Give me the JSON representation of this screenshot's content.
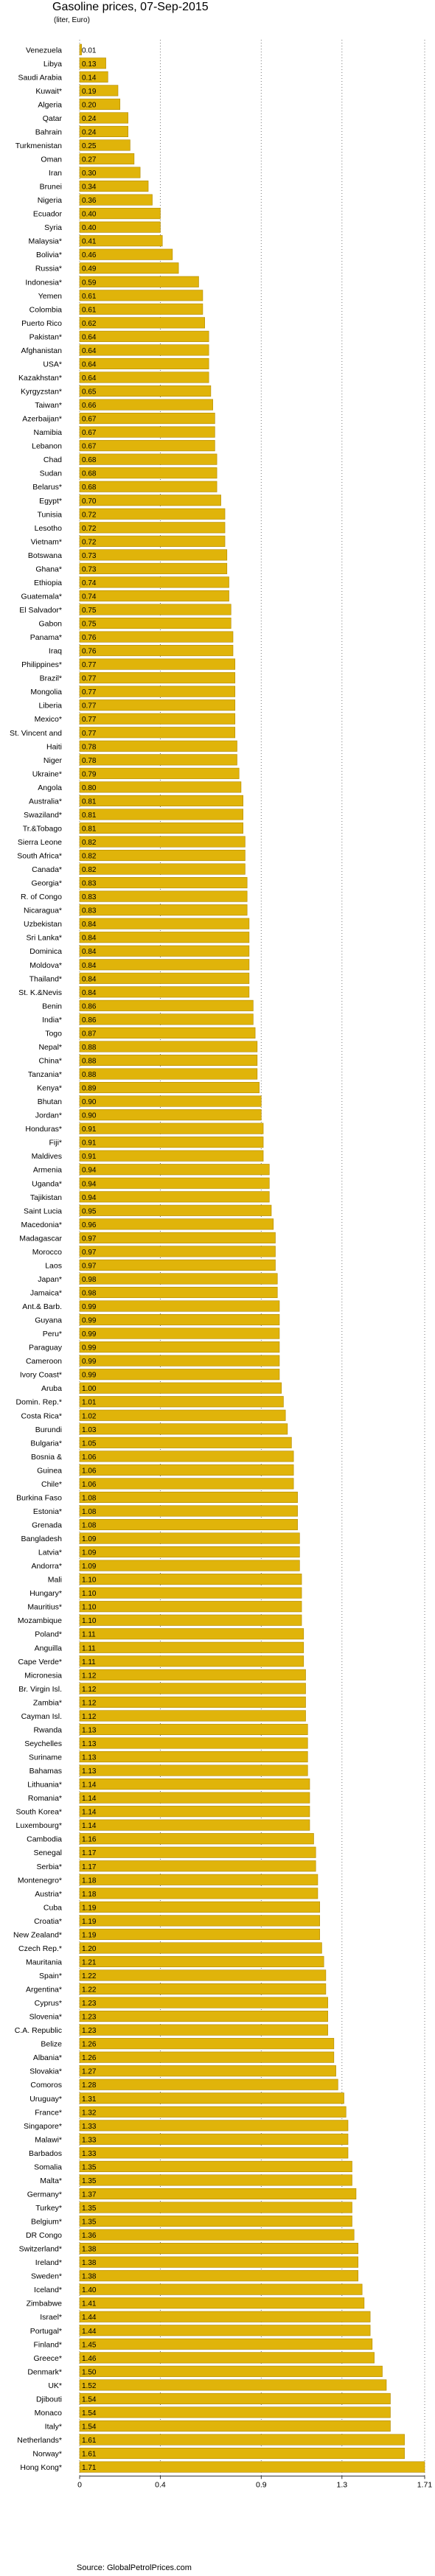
{
  "title": "Gasoline prices, 07-Sep-2015",
  "subtitle": "(liter, Euro)",
  "source": "Source: GlobalPetrolPrices.com",
  "colors": {
    "bar": "#E0B40A",
    "bar_edge": "#B08800",
    "background": "#ffffff"
  },
  "chart_data": {
    "type": "bar",
    "orientation": "horizontal",
    "title": "Gasoline prices, 07-Sep-2015",
    "subtitle": "(liter, Euro)",
    "xlim": [
      0,
      1.71
    ],
    "x_ticks": [
      0,
      0.4,
      0.9,
      1.3,
      1.71
    ],
    "x_tick_labels": [
      "0",
      "0.4",
      "0.9",
      "1.3",
      "1.71"
    ],
    "grid": "vertical dotted at ticks",
    "categories": [
      "Venezuela",
      "Libya",
      "Saudi Arabia",
      "Kuwait*",
      "Algeria",
      "Qatar",
      "Bahrain",
      "Turkmenistan",
      "Oman",
      "Iran",
      "Brunei",
      "Nigeria",
      "Ecuador",
      "Syria",
      "Malaysia*",
      "Bolivia*",
      "Russia*",
      "Indonesia*",
      "Yemen",
      "Colombia",
      "Puerto Rico",
      "Pakistan*",
      "Afghanistan",
      "USA*",
      "Kazakhstan*",
      "Kyrgyzstan*",
      "Taiwan*",
      "Azerbaijan*",
      "Namibia",
      "Lebanon",
      "Chad",
      "Sudan",
      "Belarus*",
      "Egypt*",
      "Tunisia",
      "Lesotho",
      "Vietnam*",
      "Botswana",
      "Ghana*",
      "Ethiopia",
      "Guatemala*",
      "El Salvador*",
      "Gabon",
      "Panama*",
      "Iraq",
      "Philippines*",
      "Brazil*",
      "Mongolia",
      "Liberia",
      "Mexico*",
      "St. Vincent and",
      "Haiti",
      "Niger",
      "Ukraine*",
      "Angola",
      "Australia*",
      "Swaziland*",
      "Tr.&Tobago",
      "Sierra Leone",
      "South Africa*",
      "Canada*",
      "Georgia*",
      "R. of Congo",
      "Nicaragua*",
      "Uzbekistan",
      "Sri Lanka*",
      "Dominica",
      "Moldova*",
      "Thailand*",
      "St. K.&Nevis",
      "Benin",
      "India*",
      "Togo",
      "Nepal*",
      "China*",
      "Tanzania*",
      "Kenya*",
      "Bhutan",
      "Jordan*",
      "Honduras*",
      "Fiji*",
      "Maldives",
      "Armenia",
      "Uganda*",
      "Tajikistan",
      "Saint Lucia",
      "Macedonia*",
      "Madagascar",
      "Morocco",
      "Laos",
      "Japan*",
      "Jamaica*",
      "Ant.& Barb.",
      "Guyana",
      "Peru*",
      "Paraguay",
      "Cameroon",
      "Ivory Coast*",
      "Aruba",
      "Domin. Rep.*",
      "Costa Rica*",
      "Burundi",
      "Bulgaria*",
      "Bosnia &",
      "Guinea",
      "Chile*",
      "Burkina Faso",
      "Estonia*",
      "Grenada",
      "Bangladesh",
      "Latvia*",
      "Andorra*",
      "Mali",
      "Hungary*",
      "Mauritius*",
      "Mozambique",
      "Poland*",
      "Anguilla",
      "Cape Verde*",
      "Micronesia",
      "Br. Virgin Isl.",
      "Zambia*",
      "Cayman Isl.",
      "Rwanda",
      "Seychelles",
      "Suriname",
      "Bahamas",
      "Lithuania*",
      "Romania*",
      "South Korea*",
      "Luxembourg*",
      "Cambodia",
      "Senegal",
      "Serbia*",
      "Montenegro*",
      "Austria*",
      "Cuba",
      "Croatia*",
      "New Zealand*",
      "Czech Rep.*",
      "Mauritania",
      "Spain*",
      "Argentina*",
      "Cyprus*",
      "Slovenia*",
      "C.A. Republic",
      "Belize",
      "Albania*",
      "Slovakia*",
      "Comoros",
      "Uruguay*",
      "France*",
      "Singapore*",
      "Malawi*",
      "Barbados",
      "Somalia",
      "Malta*",
      "Germany*",
      "Turkey*",
      "Belgium*",
      "DR Congo",
      "Switzerland*",
      "Ireland*",
      "Sweden*",
      "Iceland*",
      "Zimbabwe",
      "Israel*",
      "Portugal*",
      "Finland*",
      "Greece*",
      "Denmark*",
      "UK*",
      "Djibouti",
      "Monaco",
      "Italy*",
      "Netherlands*",
      "Norway*",
      "Hong Kong*"
    ],
    "values": [
      0.01,
      0.13,
      0.14,
      0.19,
      0.2,
      0.24,
      0.24,
      0.25,
      0.27,
      0.3,
      0.34,
      0.36,
      0.4,
      0.4,
      0.41,
      0.46,
      0.49,
      0.59,
      0.61,
      0.61,
      0.62,
      0.64,
      0.64,
      0.64,
      0.64,
      0.65,
      0.66,
      0.67,
      0.67,
      0.67,
      0.68,
      0.68,
      0.68,
      0.7,
      0.72,
      0.72,
      0.72,
      0.73,
      0.73,
      0.74,
      0.74,
      0.75,
      0.75,
      0.76,
      0.76,
      0.77,
      0.77,
      0.77,
      0.77,
      0.77,
      0.77,
      0.78,
      0.78,
      0.79,
      0.8,
      0.81,
      0.81,
      0.81,
      0.82,
      0.82,
      0.82,
      0.83,
      0.83,
      0.83,
      0.84,
      0.84,
      0.84,
      0.84,
      0.84,
      0.84,
      0.86,
      0.86,
      0.87,
      0.88,
      0.88,
      0.88,
      0.89,
      0.9,
      0.9,
      0.91,
      0.91,
      0.91,
      0.94,
      0.94,
      0.94,
      0.95,
      0.96,
      0.97,
      0.97,
      0.97,
      0.98,
      0.98,
      0.99,
      0.99,
      0.99,
      0.99,
      0.99,
      0.99,
      1.0,
      1.01,
      1.02,
      1.03,
      1.05,
      1.06,
      1.06,
      1.06,
      1.08,
      1.08,
      1.08,
      1.09,
      1.09,
      1.09,
      1.1,
      1.1,
      1.1,
      1.1,
      1.11,
      1.11,
      1.11,
      1.12,
      1.12,
      1.12,
      1.12,
      1.13,
      1.13,
      1.13,
      1.13,
      1.14,
      1.14,
      1.14,
      1.14,
      1.16,
      1.17,
      1.17,
      1.18,
      1.18,
      1.19,
      1.19,
      1.19,
      1.2,
      1.21,
      1.22,
      1.22,
      1.23,
      1.23,
      1.23,
      1.26,
      1.26,
      1.27,
      1.28,
      1.31,
      1.32,
      1.33,
      1.33,
      1.33,
      1.35,
      1.35,
      1.37,
      1.35,
      1.35,
      1.36,
      1.38,
      1.38,
      1.38,
      1.4,
      1.41,
      1.44,
      1.44,
      1.45,
      1.46,
      1.5,
      1.52,
      1.54,
      1.54,
      1.54,
      1.61,
      1.61,
      1.71
    ],
    "value_labels": [
      "0.01",
      "0.13",
      "0.14",
      "0.19",
      "0.20",
      "0.24",
      "0.24",
      "0.25",
      "0.27",
      "0.30",
      "0.34",
      "0.36",
      "0.40",
      "0.40",
      "0.41",
      "0.46",
      "0.49",
      "0.59",
      "0.61",
      "0.61",
      "0.62",
      "0.64",
      "0.64",
      "0.64",
      "0.64",
      "0.65",
      "0.66",
      "0.67",
      "0.67",
      "0.67",
      "0.68",
      "0.68",
      "0.68",
      "0.70",
      "0.72",
      "0.72",
      "0.72",
      "0.73",
      "0.73",
      "0.74",
      "0.74",
      "0.75",
      "0.75",
      "0.76",
      "0.76",
      "0.77",
      "0.77",
      "0.77",
      "0.77",
      "0.77",
      "0.77",
      "0.78",
      "0.78",
      "0.79",
      "0.80",
      "0.81",
      "0.81",
      "0.81",
      "0.82",
      "0.82",
      "0.82",
      "0.83",
      "0.83",
      "0.83",
      "0.84",
      "0.84",
      "0.84",
      "0.84",
      "0.84",
      "0.84",
      "0.86",
      "0.86",
      "0.87",
      "0.88",
      "0.88",
      "0.88",
      "0.89",
      "0.90",
      "0.90",
      "0.91",
      "0.91",
      "0.91",
      "0.94",
      "0.94",
      "0.94",
      "0.95",
      "0.96",
      "0.97",
      "0.97",
      "0.97",
      "0.98",
      "0.98",
      "0.99",
      "0.99",
      "0.99",
      "0.99",
      "0.99",
      "0.99",
      "1.00",
      "1.01",
      "1.02",
      "1.03",
      "1.05",
      "1.06",
      "1.06",
      "1.06",
      "1.08",
      "1.08",
      "1.08",
      "1.09",
      "1.09",
      "1.09",
      "1.10",
      "1.10",
      "1.10",
      "1.10",
      "1.11",
      "1.11",
      "1.11",
      "1.12",
      "1.12",
      "1.12",
      "1.12",
      "1.13",
      "1.13",
      "1.13",
      "1.13",
      "1.14",
      "1.14",
      "1.14",
      "1.14",
      "1.16",
      "1.17",
      "1.17",
      "1.18",
      "1.18",
      "1.19",
      "1.19",
      "1.19",
      "1.20",
      "1.21",
      "1.22",
      "1.22",
      "1.23",
      "1.23",
      "1.23",
      "1.26",
      "1.26",
      "1.27",
      "1.28",
      "1.31",
      "1.32",
      "1.33",
      "1.33",
      "1.33",
      "1.35",
      "1.35",
      "1.37",
      "1.35",
      "1.35",
      "1.36",
      "1.38",
      "1.38",
      "1.38",
      "1.40",
      "1.41",
      "1.44",
      "1.44",
      "1.45",
      "1.46",
      "1.50",
      "1.52",
      "1.54",
      "1.54",
      "1.54",
      "1.61",
      "1.61",
      "1.71"
    ]
  }
}
